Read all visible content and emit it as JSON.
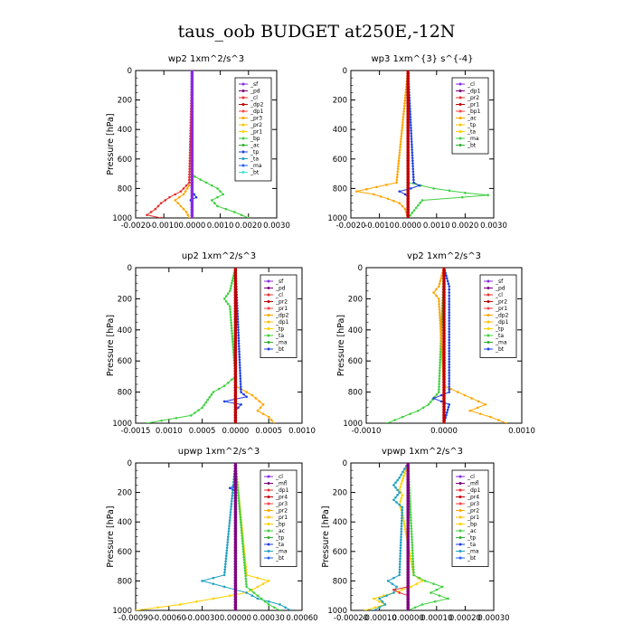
{
  "title": "taus_oob  BUDGET at250E,-12N",
  "chart_data": [
    {
      "type": "line",
      "title": "wp2  1xm^2/s^3",
      "ylabel": "Pressure  [hPa]",
      "xlim": [
        -0.002,
        0.003
      ],
      "ylim": [
        1000,
        0
      ],
      "xticks": [
        "-0.0020",
        "-0.0010",
        "0.0000",
        "0.0010",
        "0.0020",
        "0.0030"
      ],
      "yticks": [
        "0",
        "200",
        "400",
        "600",
        "800",
        "1000"
      ],
      "grid": false,
      "legend_position": "top-right",
      "legend": [
        "_sf",
        "_pd",
        "_cl",
        "_dp2",
        "_dp1",
        "_pr3",
        "_pr2",
        "_pr1",
        "_bp",
        "_ac",
        "_tp",
        "_ta",
        "_ma",
        "_bt"
      ],
      "series": [
        {
          "name": "_bp",
          "color": "#40d040",
          "pressure": [
            0,
            700,
            720,
            760,
            800,
            840,
            880,
            920,
            960,
            1000
          ],
          "values": [
            0,
            0,
            0.0001,
            0.0005,
            0.0009,
            0.0011,
            0.0007,
            0.0009,
            0.0015,
            0.002
          ]
        },
        {
          "name": "_pr2",
          "color": "#ffa500",
          "pressure": [
            0,
            780,
            840,
            880,
            920,
            960,
            1000
          ],
          "values": [
            0,
            -0.0001,
            -0.0003,
            -0.0006,
            -0.0004,
            -0.0002,
            -0.0001
          ]
        },
        {
          "name": "_dp1",
          "color": "#e83030",
          "pressure": [
            0,
            760,
            820,
            860,
            900,
            940,
            980,
            1000
          ],
          "values": [
            0,
            -0.0001,
            -0.0004,
            -0.0008,
            -0.0011,
            -0.0013,
            -0.0016,
            -0.0011
          ]
        },
        {
          "name": "_ta",
          "color": "#2040e0",
          "pressure": [
            0,
            820,
            860,
            880,
            900,
            1000
          ],
          "values": [
            0,
            0,
            0.00015,
            -5e-05,
            0,
            0
          ]
        },
        {
          "name": "_ma",
          "color": "#8a2be2",
          "pressure": [
            0,
            1000
          ],
          "values": [
            0,
            0
          ]
        }
      ]
    },
    {
      "type": "line",
      "title": "wp3  1xm^{3} s^{-4}",
      "ylabel": "",
      "xlim": [
        -0.002,
        0.003
      ],
      "ylim": [
        1000,
        0
      ],
      "xticks": [
        "-0.0020",
        "-0.0010",
        "0.0000",
        "0.0010",
        "0.0020",
        "0.0030"
      ],
      "yticks": [
        "0",
        "200",
        "400",
        "600",
        "800",
        "1000"
      ],
      "grid": false,
      "legend_position": "top-right",
      "legend": [
        "_cl",
        "_dp1",
        "_pr2",
        "_pr1",
        "_bp1",
        "_ac",
        "_tp",
        "_ta",
        "_ma",
        "_bt"
      ],
      "series": [
        {
          "name": "_ac",
          "color": "#40d040",
          "pressure": [
            0,
            760,
            800,
            830,
            845,
            860,
            880,
            1000
          ],
          "values": [
            0,
            0,
            0.0009,
            0.002,
            0.0028,
            0.0019,
            0.0005,
            0
          ]
        },
        {
          "name": "_pr2",
          "color": "#ffa500",
          "pressure": [
            0,
            760,
            790,
            820,
            840,
            870,
            900,
            940,
            1000
          ],
          "values": [
            0,
            -0.0004,
            -0.0011,
            -0.0018,
            -0.0012,
            -0.0007,
            -0.0003,
            -0.0001,
            0
          ]
        },
        {
          "name": "_tp",
          "color": "#2040e0",
          "pressure": [
            0,
            760,
            780,
            800,
            820,
            840,
            860,
            1000
          ],
          "values": [
            0,
            0.0002,
            0.0004,
            0.0001,
            -0.0003,
            -0.0001,
            0,
            0
          ]
        },
        {
          "name": "_cl",
          "color": "#c00000",
          "pressure": [
            0,
            1000
          ],
          "values": [
            0,
            0
          ]
        }
      ]
    },
    {
      "type": "line",
      "title": "up2  1xm^2/s^3",
      "ylabel": "Pressure  [hPa]",
      "xlim": [
        -0.0018,
        0.0012
      ],
      "ylim": [
        1000,
        0
      ],
      "xticks": [
        "-0.0015",
        "0.0010",
        "0.0005",
        "0.0000",
        "0.0005",
        "0.0010"
      ],
      "yticks": [
        "0",
        "200",
        "400",
        "600",
        "800",
        "1000"
      ],
      "grid": false,
      "legend_position": "top-right",
      "legend": [
        "_sf",
        "_pd",
        "_cl",
        "_pr2",
        "_pr1",
        "_dp2",
        "_dp1",
        "_tp",
        "_ta",
        "_ma",
        "_bt"
      ],
      "series": [
        {
          "name": "_dp1",
          "color": "#40d040",
          "pressure": [
            0,
            150,
            200,
            250,
            700,
            760,
            800,
            850,
            900,
            950,
            1000
          ],
          "values": [
            0,
            -0.0001,
            -0.0002,
            -0.0001,
            0,
            -0.0002,
            -0.0004,
            -0.0005,
            -0.0006,
            -0.0008,
            -0.0016
          ]
        },
        {
          "name": "_pr1",
          "color": "#ffa500",
          "pressure": [
            0,
            760,
            820,
            880,
            920,
            960,
            1000
          ],
          "values": [
            0,
            0,
            0.0003,
            0.0005,
            0.0004,
            0.0006,
            0.0007
          ]
        },
        {
          "name": "_tp",
          "color": "#2040e0",
          "pressure": [
            0,
            800,
            830,
            860,
            880,
            920,
            1000
          ],
          "values": [
            0,
            0.0001,
            0.0002,
            -0.0002,
            0.0001,
            0,
            0
          ]
        },
        {
          "name": "_cl",
          "color": "#c00000",
          "pressure": [
            0,
            1000
          ],
          "values": [
            0,
            0
          ]
        }
      ]
    },
    {
      "type": "line",
      "title": "vp2  1xm^2/s^3",
      "ylabel": "Pressure  [hPa]",
      "xlim": [
        -0.0015,
        0.0015
      ],
      "ylim": [
        1000,
        0
      ],
      "xticks": [
        "-0.0010",
        "0.0000",
        "0.0010"
      ],
      "yticks": [
        "0",
        "200",
        "400",
        "600",
        "800",
        "1000"
      ],
      "grid": false,
      "legend_position": "top-right",
      "legend": [
        "_sf",
        "_pd",
        "_cl",
        "_pr2",
        "_pr1",
        "_dp2",
        "_dp1",
        "_tp",
        "_ta",
        "_ma",
        "_bt"
      ],
      "series": [
        {
          "name": "_dp1",
          "color": "#40d040",
          "pressure": [
            0,
            800,
            880,
            920,
            960,
            1000
          ],
          "values": [
            0,
            -0.0001,
            -0.0003,
            -0.0005,
            -0.0008,
            -0.0011
          ]
        },
        {
          "name": "_pr1",
          "color": "#ffa500",
          "pressure": [
            0,
            120,
            160,
            200,
            760,
            820,
            880,
            920,
            960,
            1000
          ],
          "values": [
            0,
            -0.0001,
            -0.0002,
            -0.0001,
            0,
            0.0004,
            0.0008,
            0.0005,
            0.0009,
            0.0012
          ]
        },
        {
          "name": "_tp",
          "color": "#2040e0",
          "pressure": [
            0,
            120,
            160,
            200,
            800,
            840,
            880,
            1000
          ],
          "values": [
            0,
            0.0001,
            0.0001,
            0.0001,
            0.0001,
            -0.0002,
            0.0001,
            0
          ]
        },
        {
          "name": "_cl",
          "color": "#c00000",
          "pressure": [
            0,
            1000
          ],
          "values": [
            0,
            0
          ]
        }
      ]
    },
    {
      "type": "line",
      "title": "upwp  1xm^2/s^3",
      "ylabel": "Pressure  [hPa]",
      "xlim": [
        -0.0009,
        0.0006
      ],
      "ylim": [
        1000,
        0
      ],
      "xticks": [
        "-0.00090",
        "-0.00060",
        "-0.00030",
        "0.00000",
        "0.00030",
        "0.00060"
      ],
      "yticks": [
        "0",
        "200",
        "400",
        "600",
        "800",
        "1000"
      ],
      "grid": false,
      "legend_position": "top-right",
      "legend": [
        "_cl",
        "_mfl",
        "_dp1",
        "_pr4",
        "_pr3",
        "_pr2",
        "_pr1",
        "_bp",
        "_ac",
        "_tp",
        "_ta",
        "_ma",
        "_bt"
      ],
      "series": [
        {
          "name": "_pr1",
          "color": "#ffd000",
          "pressure": [
            0,
            760,
            800,
            840,
            880,
            920,
            960,
            1000
          ],
          "values": [
            0,
            0.0001,
            0.0003,
            0.0002,
            0.0001,
            -0.0002,
            -0.0005,
            -0.0009
          ]
        },
        {
          "name": "_tp",
          "color": "#20a0c0",
          "pressure": [
            0,
            760,
            800,
            840,
            880,
            920,
            960,
            1000
          ],
          "values": [
            0,
            -0.0001,
            -0.0003,
            -0.0001,
            0.0001,
            0.0002,
            0.0004,
            0.0005
          ]
        },
        {
          "name": "_bp",
          "color": "#40d040",
          "pressure": [
            0,
            840,
            900,
            960,
            1000
          ],
          "values": [
            0,
            0.0001,
            0.0002,
            0.0003,
            0.0004
          ]
        },
        {
          "name": "_ta",
          "color": "#2040e0",
          "pressure": [
            0,
            150,
            170,
            190,
            1000
          ],
          "values": [
            0,
            0,
            -5e-05,
            0,
            0
          ]
        },
        {
          "name": "_mfl",
          "color": "#800080",
          "pressure": [
            0,
            1000
          ],
          "values": [
            0,
            0
          ]
        }
      ]
    },
    {
      "type": "line",
      "title": "vpwp  1xm^2/s^3",
      "ylabel": "Pressure  [hPa]",
      "xlim": [
        -0.0002,
        0.0003
      ],
      "ylim": [
        1000,
        0
      ],
      "xticks": [
        "-0.00020",
        "-0.00010",
        "0.00000",
        "0.00010",
        "0.00020",
        "0.00030"
      ],
      "yticks": [
        "0",
        "200",
        "400",
        "600",
        "800",
        "1000"
      ],
      "grid": false,
      "legend_position": "top-right",
      "legend": [
        "_cl",
        "_mfl",
        "_dp1",
        "_pr4",
        "_pr3",
        "_pr2",
        "_pr1",
        "_bp",
        "_ac",
        "_tp",
        "_ta",
        "_ma",
        "_bt"
      ],
      "series": [
        {
          "name": "_pr1",
          "color": "#ffd000",
          "pressure": [
            0,
            120,
            180,
            220,
            280,
            340,
            760,
            800,
            840,
            880,
            920,
            960,
            1000
          ],
          "values": [
            0,
            -2e-05,
            -3e-05,
            -2e-05,
            -3e-05,
            -2e-05,
            2e-05,
            5e-05,
            1e-05,
            -5e-05,
            -0.00012,
            -8e-05,
            -0.00015
          ]
        },
        {
          "name": "_tp",
          "color": "#20a0c0",
          "pressure": [
            0,
            100,
            150,
            200,
            250,
            300,
            760,
            800,
            840,
            880,
            920,
            960,
            1000
          ],
          "values": [
            0,
            -3e-05,
            -5e-05,
            -3e-05,
            -5e-05,
            -2e-05,
            -3e-05,
            -7e-05,
            -4e-05,
            -5e-05,
            -0.0001,
            -8e-05,
            -0.00012
          ]
        },
        {
          "name": "_bp",
          "color": "#40d040",
          "pressure": [
            0,
            760,
            800,
            840,
            880,
            920,
            960,
            1000
          ],
          "values": [
            0,
            2e-05,
            6e-05,
            0.00012,
            8e-05,
            0.00014,
            5e-05,
            0
          ]
        },
        {
          "name": "_dp1",
          "color": "#e83030",
          "pressure": [
            0,
            840,
            860,
            880,
            900,
            1000
          ],
          "values": [
            0,
            0,
            -5e-05,
            -3e-05,
            0,
            0
          ]
        },
        {
          "name": "_mfl",
          "color": "#800080",
          "pressure": [
            0,
            1000
          ],
          "values": [
            0,
            0
          ]
        }
      ]
    }
  ]
}
